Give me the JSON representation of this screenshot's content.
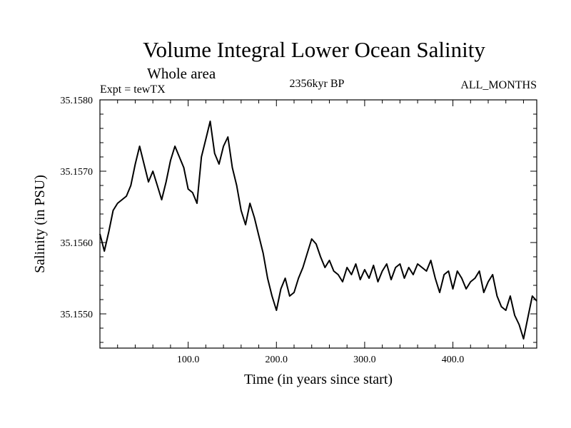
{
  "header": {
    "title": "Volume Integral Lower Ocean Salinity",
    "subtitle": "Whole area",
    "experiment": "Expt = tewTX",
    "period": "2356kyr BP",
    "months": "ALL_MONTHS"
  },
  "chart_data": {
    "type": "line",
    "title": "Volume Integral Lower Ocean Salinity",
    "subtitle": "Whole area",
    "xlabel": "Time (in years since start)",
    "ylabel": "Salinity (in PSU)",
    "xlim": [
      0,
      495
    ],
    "ylim": [
      35.15452,
      35.158
    ],
    "xticks": [
      100,
      200,
      300,
      400
    ],
    "xtick_labels": [
      "100.0",
      "200.0",
      "300.0",
      "400.0"
    ],
    "yticks": [
      35.155,
      35.156,
      35.157,
      35.158
    ],
    "ytick_labels": [
      "35.1550",
      "35.1560",
      "35.1570",
      "35.1580"
    ],
    "grid": false,
    "series": [
      {
        "name": "Salinity",
        "x": [
          0,
          5,
          10,
          15,
          20,
          25,
          30,
          35,
          40,
          45,
          50,
          55,
          60,
          65,
          70,
          75,
          80,
          85,
          90,
          95,
          100,
          105,
          110,
          115,
          120,
          125,
          130,
          135,
          140,
          145,
          150,
          155,
          160,
          165,
          170,
          175,
          180,
          185,
          190,
          195,
          200,
          205,
          210,
          215,
          220,
          225,
          230,
          235,
          240,
          245,
          250,
          255,
          260,
          265,
          270,
          275,
          280,
          285,
          290,
          295,
          300,
          305,
          310,
          315,
          320,
          325,
          330,
          335,
          340,
          345,
          350,
          355,
          360,
          365,
          370,
          375,
          380,
          385,
          390,
          395,
          400,
          405,
          410,
          415,
          420,
          425,
          430,
          435,
          440,
          445,
          450,
          455,
          460,
          465,
          470,
          475,
          480,
          485,
          490,
          495
        ],
        "values": [
          35.15612,
          35.15588,
          35.15615,
          35.15645,
          35.15655,
          35.1566,
          35.15665,
          35.1568,
          35.1571,
          35.15735,
          35.1571,
          35.15685,
          35.157,
          35.1568,
          35.1566,
          35.15685,
          35.15715,
          35.15735,
          35.1572,
          35.15705,
          35.15675,
          35.1567,
          35.15655,
          35.1572,
          35.15745,
          35.1577,
          35.15725,
          35.1571,
          35.15735,
          35.15748,
          35.15705,
          35.1568,
          35.15645,
          35.15625,
          35.15655,
          35.15635,
          35.1561,
          35.15585,
          35.1555,
          35.15525,
          35.15505,
          35.15535,
          35.1555,
          35.15525,
          35.1553,
          35.1555,
          35.15565,
          35.15585,
          35.15605,
          35.15598,
          35.1558,
          35.15565,
          35.15575,
          35.1556,
          35.15555,
          35.15545,
          35.15565,
          35.15555,
          35.1557,
          35.15548,
          35.15562,
          35.1555,
          35.15568,
          35.15545,
          35.1556,
          35.1557,
          35.15548,
          35.15565,
          35.1557,
          35.1555,
          35.15565,
          35.15555,
          35.1557,
          35.15565,
          35.1556,
          35.15575,
          35.1555,
          35.1553,
          35.15555,
          35.1556,
          35.15535,
          35.1556,
          35.1555,
          35.15535,
          35.15545,
          35.1555,
          35.1556,
          35.1553,
          35.15545,
          35.15555,
          35.15525,
          35.1551,
          35.15505,
          35.15525,
          35.15498,
          35.15485,
          35.15465,
          35.15495,
          35.15525,
          35.15518
        ]
      }
    ]
  }
}
